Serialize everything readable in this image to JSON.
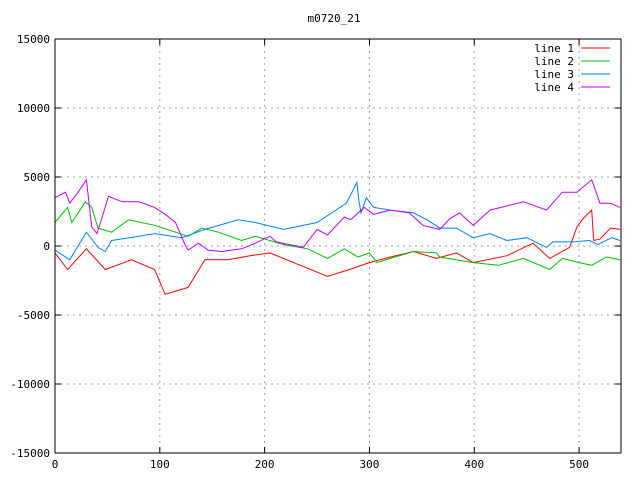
{
  "chart_data": {
    "type": "line",
    "title": "m0720_21",
    "xlabel": "",
    "ylabel": "",
    "xlim": [
      0,
      540
    ],
    "ylim": [
      -15000,
      15000
    ],
    "xticks": [
      0,
      100,
      200,
      300,
      400,
      500
    ],
    "yticks": [
      -15000,
      -10000,
      -5000,
      0,
      5000,
      10000,
      15000
    ],
    "grid": true,
    "legend_position": "top-right",
    "series": [
      {
        "name": "line 1",
        "color": "#ff0000",
        "x": [
          0,
          12,
          30,
          48,
          73,
          95,
          105,
          127,
          143,
          165,
          186,
          205,
          234,
          260,
          281,
          300,
          320,
          342,
          364,
          383,
          399,
          431,
          456,
          472,
          491,
          498,
          504,
          512,
          514,
          520,
          530,
          539
        ],
        "y": [
          -500,
          -1700,
          -200,
          -1700,
          -1000,
          -1700,
          -3500,
          -3000,
          -1000,
          -1000,
          -700,
          -500,
          -1400,
          -2200,
          -1700,
          -1200,
          -800,
          -400,
          -900,
          -500,
          -1200,
          -700,
          200,
          -900,
          -100,
          1400,
          2000,
          2600,
          400,
          500,
          1300,
          1200
        ]
      },
      {
        "name": "line 2",
        "color": "#00c000",
        "x": [
          0,
          12,
          16,
          29,
          35,
          41,
          54,
          70,
          95,
          127,
          140,
          156,
          178,
          191,
          205,
          218,
          241,
          260,
          276,
          289,
          300,
          307,
          320,
          342,
          364,
          367,
          399,
          423,
          447,
          472,
          484,
          500,
          512,
          526,
          539
        ],
        "y": [
          1700,
          2800,
          1700,
          3200,
          2800,
          1300,
          1000,
          1900,
          1500,
          700,
          1300,
          1000,
          400,
          700,
          400,
          100,
          -200,
          -900,
          -200,
          -800,
          -500,
          -1200,
          -900,
          -400,
          -500,
          -800,
          -1200,
          -1400,
          -900,
          -1700,
          -900,
          -1200,
          -1400,
          -800,
          -1000
        ]
      },
      {
        "name": "line 3",
        "color": "#0080ff",
        "x": [
          0,
          14,
          30,
          41,
          48,
          54,
          80,
          95,
          121,
          143,
          175,
          191,
          218,
          250,
          266,
          278,
          288,
          290,
          292,
          297,
          304,
          320,
          342,
          355,
          367,
          383,
          399,
          415,
          431,
          450,
          469,
          475,
          494,
          510,
          518,
          531,
          539
        ],
        "y": [
          -300,
          -1000,
          1000,
          -100,
          -400,
          400,
          700,
          900,
          600,
          1200,
          1900,
          1700,
          1200,
          1700,
          2500,
          3100,
          4600,
          3200,
          2400,
          3500,
          2800,
          2600,
          2400,
          1900,
          1300,
          1300,
          600,
          900,
          400,
          600,
          -100,
          300,
          300,
          400,
          100,
          600,
          400
        ]
      },
      {
        "name": "line 4",
        "color": "#c000ff",
        "x": [
          0,
          10,
          14,
          22,
          30,
          35,
          40,
          45,
          51,
          64,
          80,
          95,
          105,
          115,
          124,
          127,
          137,
          146,
          159,
          178,
          191,
          205,
          211,
          237,
          250,
          260,
          276,
          282,
          295,
          304,
          320,
          338,
          351,
          367,
          377,
          386,
          399,
          415,
          447,
          469,
          484,
          498,
          512,
          520,
          530,
          539
        ],
        "y": [
          3500,
          3900,
          3100,
          3900,
          4800,
          1400,
          900,
          2100,
          3600,
          3200,
          3200,
          2800,
          2300,
          1700,
          100,
          -300,
          200,
          -300,
          -400,
          -200,
          200,
          700,
          300,
          -100,
          1200,
          800,
          2100,
          1900,
          2800,
          2300,
          2600,
          2400,
          1500,
          1200,
          2000,
          2400,
          1500,
          2600,
          3200,
          2600,
          3900,
          3900,
          4800,
          3100,
          3100,
          2800
        ]
      }
    ]
  }
}
